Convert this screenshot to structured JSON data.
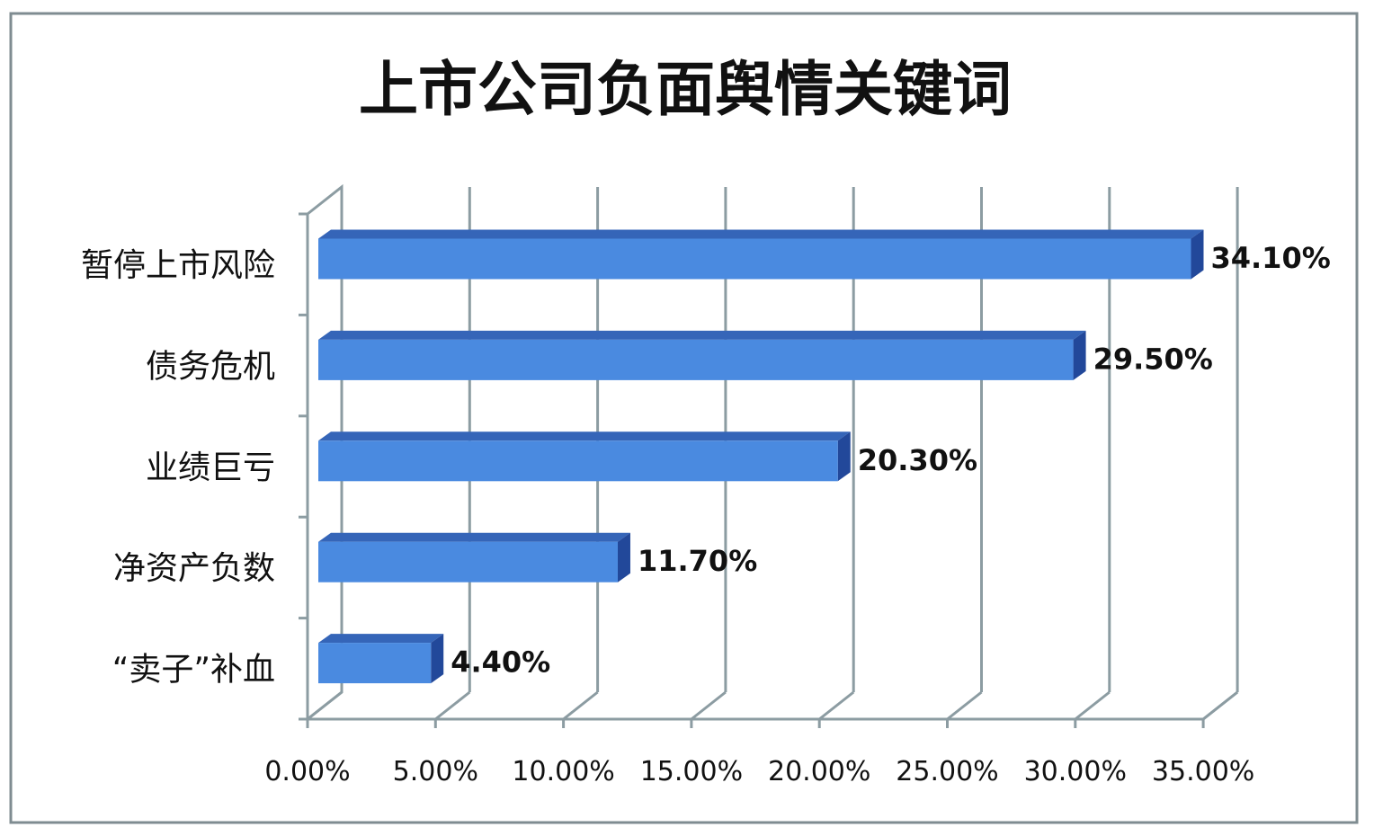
{
  "chart_data": {
    "type": "bar",
    "orientation": "horizontal",
    "style": "3d",
    "title": "上市公司负面舆情关键词",
    "categories": [
      "暂停上市风险",
      "债务危机",
      "业绩巨亏",
      "净资产负数",
      "“卖子”补血"
    ],
    "values": [
      34.1,
      29.5,
      20.3,
      11.7,
      4.4
    ],
    "value_labels": [
      "34.10%",
      "29.50%",
      "20.30%",
      "11.70%",
      "4.40%"
    ],
    "x_ticks": [
      "0.00%",
      "5.00%",
      "10.00%",
      "15.00%",
      "20.00%",
      "25.00%",
      "30.00%",
      "35.00%"
    ],
    "xlim": [
      0,
      35
    ],
    "xlabel": "",
    "ylabel": "",
    "grid": true,
    "colors": {
      "front": "#4a8ae0",
      "top": "#3565b8",
      "side": "#22489a",
      "grid": "#8c9ca2",
      "border": "#7f8c91"
    }
  }
}
